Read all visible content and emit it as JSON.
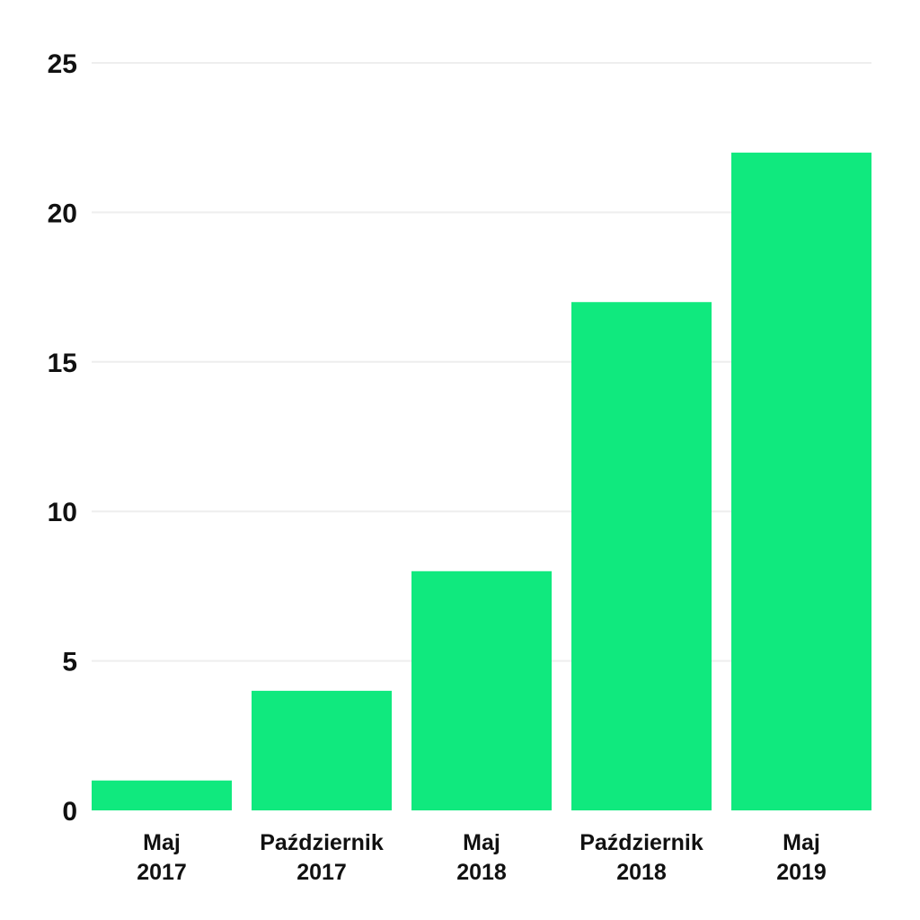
{
  "chart_data": {
    "type": "bar",
    "categories": [
      [
        "Maj",
        "2017"
      ],
      [
        "Październik",
        "2017"
      ],
      [
        "Maj",
        "2018"
      ],
      [
        "Październik",
        "2018"
      ],
      [
        "Maj",
        "2019"
      ]
    ],
    "values": [
      1,
      4,
      8,
      17,
      22
    ],
    "yticks": [
      0,
      5,
      10,
      15,
      20,
      25
    ],
    "ylim": [
      0,
      25
    ],
    "grid": true,
    "bar_color": "#10e97e",
    "title": "",
    "xlabel": "",
    "ylabel": ""
  }
}
